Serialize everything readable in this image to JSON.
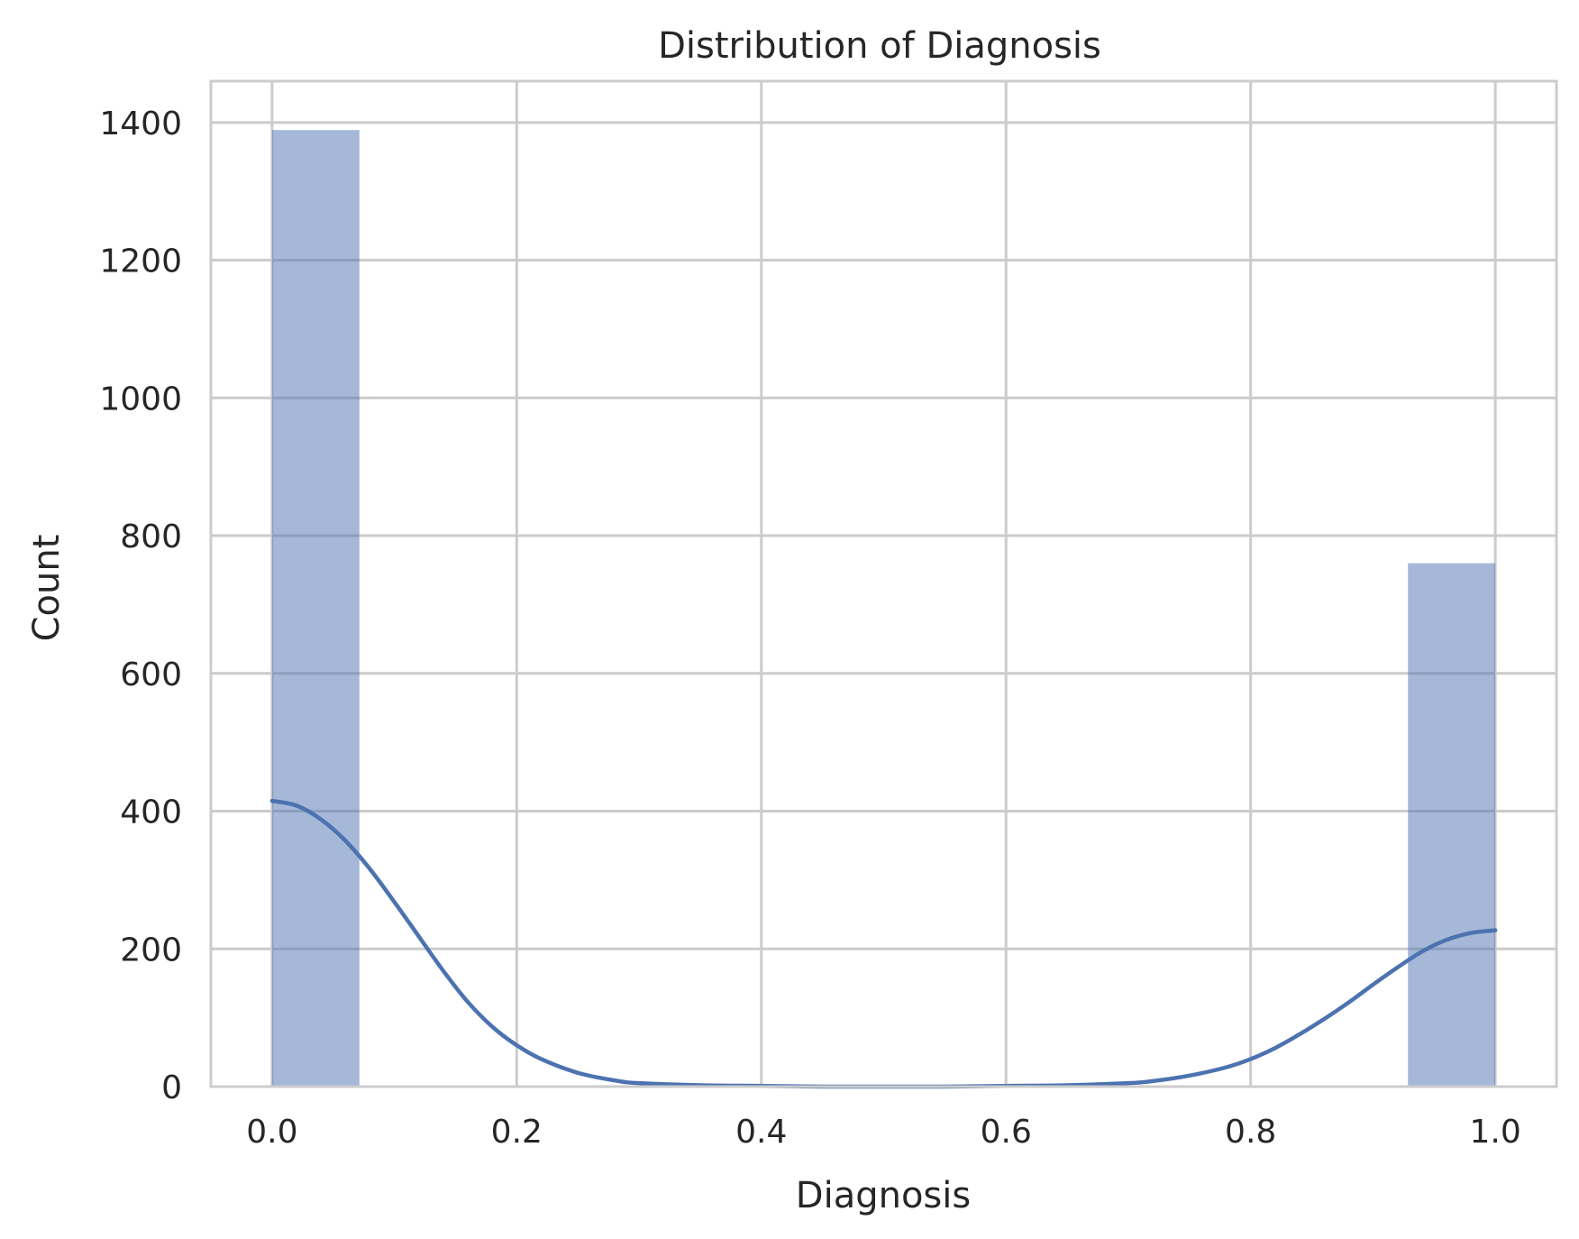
{
  "chart_data": {
    "type": "bar",
    "title": "Distribution of Diagnosis",
    "xlabel": "Diagnosis",
    "ylabel": "Count",
    "xlim": [
      -0.05,
      1.05
    ],
    "ylim": [
      0,
      1460
    ],
    "xticks": [
      0.0,
      0.2,
      0.4,
      0.6,
      0.8,
      1.0
    ],
    "xtick_labels": [
      "0.0",
      "0.2",
      "0.4",
      "0.6",
      "0.8",
      "1.0"
    ],
    "yticks": [
      0,
      200,
      400,
      600,
      800,
      1000,
      1200,
      1400
    ],
    "ytick_labels": [
      "0",
      "200",
      "400",
      "600",
      "800",
      "1000",
      "1200",
      "1400"
    ],
    "grid": true,
    "bins": [
      {
        "start": 0.0,
        "end": 0.0714,
        "count": 1389
      },
      {
        "start": 0.9286,
        "end": 1.0,
        "count": 760
      }
    ],
    "kde": {
      "x": [
        0.0,
        0.02,
        0.04,
        0.06,
        0.08,
        0.1,
        0.12,
        0.14,
        0.16,
        0.18,
        0.2,
        0.22,
        0.25,
        0.28,
        0.3,
        0.35,
        0.4,
        0.45,
        0.5,
        0.55,
        0.6,
        0.65,
        0.7,
        0.72,
        0.75,
        0.78,
        0.8,
        0.82,
        0.84,
        0.86,
        0.88,
        0.9,
        0.92,
        0.94,
        0.96,
        0.98,
        1.0
      ],
      "y": [
        415,
        408,
        388,
        357,
        316,
        268,
        218,
        168,
        123,
        87,
        60,
        40,
        20,
        9,
        5,
        2,
        1,
        0,
        0,
        0,
        1,
        2,
        5,
        8,
        16,
        28,
        40,
        56,
        76,
        98,
        122,
        148,
        173,
        196,
        213,
        223,
        227
      ]
    },
    "colors": {
      "bar": "#4c72b0",
      "bar_opacity": 0.5,
      "kde": "#4c72b0"
    }
  }
}
